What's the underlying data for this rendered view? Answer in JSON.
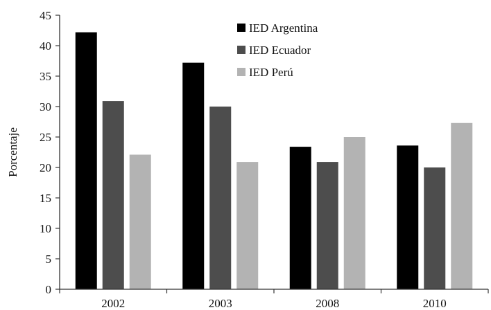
{
  "chart_data": {
    "type": "bar",
    "title": "",
    "xlabel": "",
    "ylabel": "Porcentaje",
    "ylim": [
      0,
      45
    ],
    "yticks": [
      0,
      5,
      10,
      15,
      20,
      25,
      30,
      35,
      40,
      45
    ],
    "categories": [
      "2002",
      "2003",
      "2008",
      "2010"
    ],
    "series": [
      {
        "name": "IED Argentina",
        "color": "#000000",
        "values": [
          42.2,
          37.2,
          23.4,
          23.6
        ]
      },
      {
        "name": "IED Ecuador",
        "color": "#4d4d4d",
        "values": [
          30.9,
          30.0,
          20.9,
          20.0
        ]
      },
      {
        "name": "IED Perú",
        "color": "#b3b3b3",
        "values": [
          22.1,
          20.9,
          25.0,
          27.3
        ]
      }
    ],
    "grid": false,
    "legend": "top-center"
  }
}
